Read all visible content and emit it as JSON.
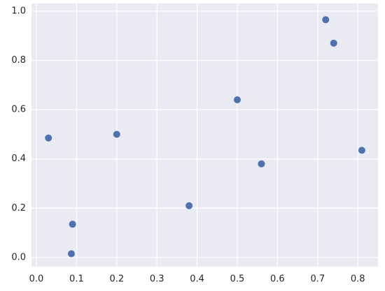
{
  "chart_data": {
    "type": "scatter",
    "color": "#4c72b0",
    "grid": true,
    "x": [
      0.03,
      0.09,
      0.087,
      0.2,
      0.38,
      0.5,
      0.56,
      0.72,
      0.74,
      0.81
    ],
    "values": [
      0.485,
      0.135,
      0.015,
      0.5,
      0.21,
      0.64,
      0.38,
      0.965,
      0.87,
      0.435
    ],
    "xlim": [
      -0.0122,
      0.8502
    ],
    "ylim": [
      -0.037,
      1.031
    ],
    "xticks": [
      {
        "value": 0,
        "label": "0.0"
      },
      {
        "value": 0.1,
        "label": "0.1"
      },
      {
        "value": 0.2,
        "label": "0.2"
      },
      {
        "value": 0.3,
        "label": "0.3"
      },
      {
        "value": 0.4,
        "label": "0.4"
      },
      {
        "value": 0.5,
        "label": "0.5"
      },
      {
        "value": 0.6,
        "label": "0.6"
      },
      {
        "value": 0.7,
        "label": "0.7"
      },
      {
        "value": 0.8,
        "label": "0.8"
      }
    ],
    "yticks": [
      {
        "value": 0,
        "label": "0.0"
      },
      {
        "value": 0.2,
        "label": "0.2"
      },
      {
        "value": 0.4,
        "label": "0.4"
      },
      {
        "value": 0.6,
        "label": "0.6"
      },
      {
        "value": 0.8,
        "label": "0.8"
      },
      {
        "value": 1,
        "label": "1.0"
      }
    ]
  }
}
